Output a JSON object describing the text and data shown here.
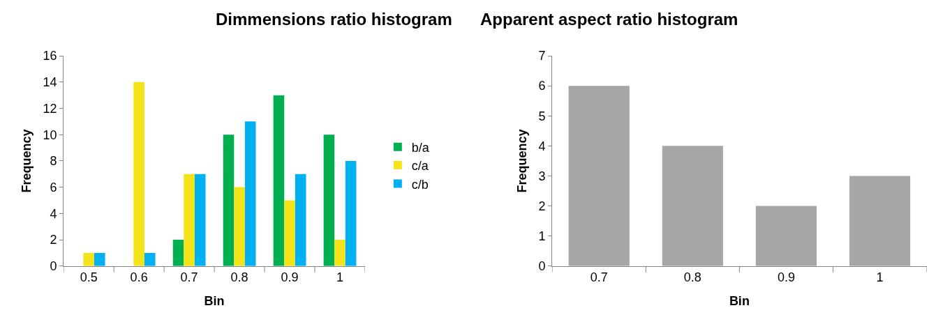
{
  "chart_data": [
    {
      "type": "bar",
      "title": "Dimmensions ratio histogram",
      "xlabel": "Bin",
      "ylabel": "Frequency",
      "categories": [
        "0.5",
        "0.6",
        "0.7",
        "0.8",
        "0.9",
        "1"
      ],
      "series": [
        {
          "name": "b/a",
          "color": "#00b050",
          "values": [
            0,
            0,
            2,
            10,
            13,
            10
          ]
        },
        {
          "name": "c/a",
          "color": "#f5e31a",
          "values": [
            1,
            14,
            7,
            6,
            5,
            2
          ]
        },
        {
          "name": "c/b",
          "color": "#00b0f0",
          "values": [
            1,
            1,
            7,
            11,
            7,
            8
          ]
        }
      ],
      "ylim": [
        0,
        16
      ],
      "yticks": [
        0,
        2,
        4,
        6,
        8,
        10,
        12,
        14,
        16
      ],
      "legend": "right"
    },
    {
      "type": "bar",
      "title": "Apparent aspect ratio histogram",
      "xlabel": "Bin",
      "ylabel": "Frequency",
      "categories": [
        "0.7",
        "0.8",
        "0.9",
        "1"
      ],
      "series": [
        {
          "color": "#a6a6a6",
          "values": [
            6,
            4,
            2,
            3
          ]
        }
      ],
      "ylim": [
        0,
        7
      ],
      "yticks": [
        0,
        1,
        2,
        3,
        4,
        5,
        6,
        7
      ]
    }
  ]
}
